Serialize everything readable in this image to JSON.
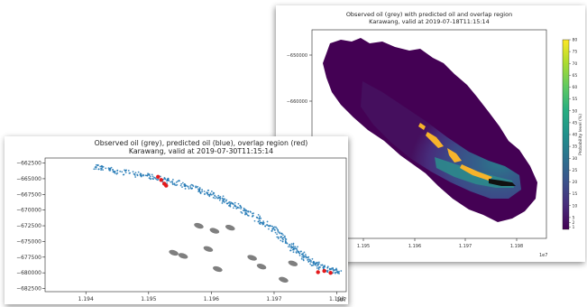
{
  "right_figure": {
    "title_line1": "Observed oil (grey) with predicted oil and overlap region",
    "title_line2": "Karawang, valid at 2019-07-18T11:15:14",
    "offset_label": "1e7",
    "colorbar_label": "Probability level (%)"
  },
  "left_figure": {
    "title_line1": "Observed oil (grey), predicted oil (blue), overlap region (red)",
    "title_line2": "Karawang, valid at 2019-07-30T11:15:14",
    "offset_label": "1e7"
  },
  "colors": {
    "observed": "#7f7f7f",
    "predicted": "#1f77b4",
    "overlap": "#e41a1c",
    "background_prob": "#440154"
  },
  "chart_data": [
    {
      "type": "heatmap",
      "title": "Observed oil (grey) with predicted oil and overlap region\nKarawang, valid at 2019-07-18T11:15:14",
      "xlabel": "",
      "ylabel": "",
      "x_offset_text": "1e7",
      "xticks": [
        1.195,
        1.196,
        1.197,
        1.198
      ],
      "xtick_labels": [
        "1.195",
        "1.196",
        "1.197",
        "1.198"
      ],
      "yticks": [
        -650000,
        -660000
      ],
      "ytick_labels": [
        "−650000",
        "−660000"
      ],
      "xlim": [
        1.1942,
        1.1985
      ],
      "ylim": [
        -682000,
        -643500
      ],
      "colorbar": {
        "label": "Probability level (%)",
        "colormap": "viridis",
        "ticks": [
          1,
          2,
          5,
          10,
          15,
          20,
          25,
          30,
          35,
          40,
          45,
          50,
          55,
          60,
          65,
          70,
          75,
          80
        ],
        "tick_labels": [
          "1",
          "2",
          "5",
          "10",
          "15",
          "20",
          "25",
          "30",
          "35",
          "40",
          "45",
          "50",
          "55",
          "60",
          "65",
          "70",
          "75",
          "80"
        ],
        "range": [
          0,
          80
        ]
      },
      "grid": false,
      "legend": "none"
    },
    {
      "type": "scatter",
      "title": "Observed oil (grey), predicted oil (blue), overlap region (red)\nKarawang, valid at 2019-07-30T11:15:14",
      "xlabel": "",
      "ylabel": "",
      "x_offset_text": "1e7",
      "xticks": [
        1.194,
        1.195,
        1.196,
        1.197,
        1.198
      ],
      "xtick_labels": [
        "1.194",
        "1.195",
        "1.196",
        "1.197",
        "1.198"
      ],
      "yticks": [
        -662500,
        -665000,
        -667500,
        -670000,
        -672500,
        -675000,
        -677500,
        -680000,
        -682500
      ],
      "ytick_labels": [
        "−662500",
        "−665000",
        "−667500",
        "−670000",
        "−672500",
        "−675000",
        "−677500",
        "−680000",
        "−682500"
      ],
      "xlim": [
        1.19335,
        1.19815
      ],
      "ylim": [
        -683000,
        -661700
      ],
      "series": [
        {
          "color": "#1f77b4",
          "points": [
            [
              1.1941,
              -663000
            ],
            [
              1.1944,
              -663600
            ],
            [
              1.1947,
              -664100
            ],
            [
              1.195,
              -664600
            ],
            [
              1.1953,
              -665300
            ],
            [
              1.19555,
              -666000
            ],
            [
              1.1958,
              -666800
            ],
            [
              1.196,
              -667500
            ],
            [
              1.1962,
              -668500
            ],
            [
              1.1964,
              -669400
            ],
            [
              1.1966,
              -670500
            ],
            [
              1.1968,
              -671800
            ],
            [
              1.197,
              -673200
            ],
            [
              1.19715,
              -674600
            ],
            [
              1.1973,
              -676000
            ],
            [
              1.19745,
              -677200
            ],
            [
              1.1976,
              -678300
            ],
            [
              1.19775,
              -679000
            ],
            [
              1.1979,
              -679600
            ],
            [
              1.19805,
              -679800
            ]
          ]
        },
        {
          "color": "#7f7f7f",
          "points": [
            [
              1.1958,
              -672500
            ],
            [
              1.19605,
              -673300
            ],
            [
              1.1963,
              -672800
            ],
            [
              1.1954,
              -676800
            ],
            [
              1.19555,
              -677300
            ],
            [
              1.19665,
              -677600
            ],
            [
              1.1961,
              -679400
            ],
            [
              1.1968,
              -679000
            ],
            [
              1.19715,
              -681100
            ],
            [
              1.1973,
              -678500
            ],
            [
              1.19595,
              -676200
            ]
          ]
        },
        {
          "color": "#e41a1c",
          "points": [
            [
              1.19515,
              -664700
            ],
            [
              1.1952,
              -665200
            ],
            [
              1.19525,
              -665800
            ],
            [
              1.19528,
              -666100
            ],
            [
              1.1977,
              -679900
            ],
            [
              1.1978,
              -679700
            ],
            [
              1.1979,
              -680000
            ]
          ]
        }
      ],
      "grid": false,
      "legend": "none"
    }
  ]
}
